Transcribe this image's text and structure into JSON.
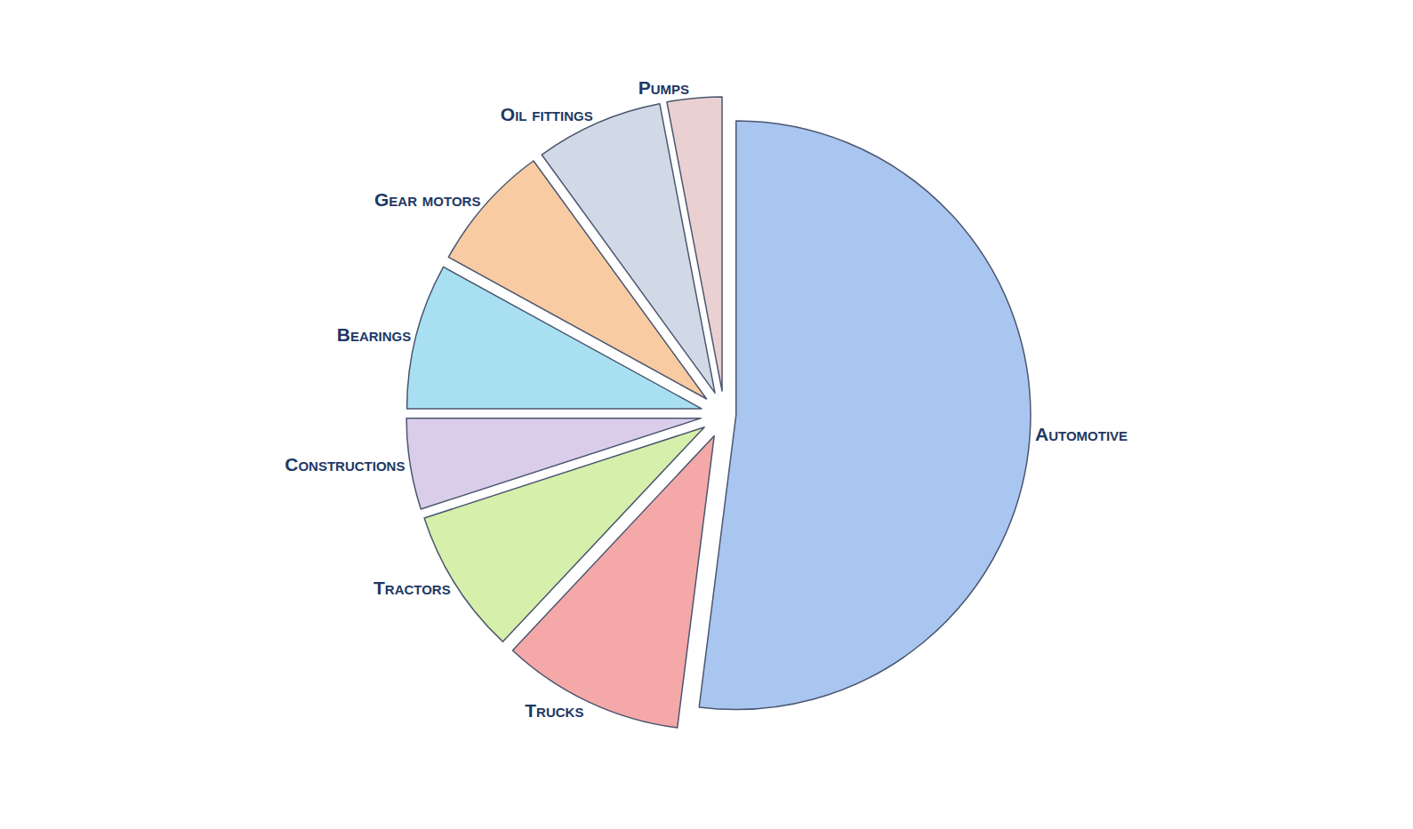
{
  "chart_data": {
    "type": "pie",
    "categories": [
      "Automotive",
      "Trucks",
      "Tractors",
      "Constructions",
      "Bearings",
      "Gear motors",
      "Oil fittings",
      "Pumps"
    ],
    "values": [
      52,
      10,
      8,
      5,
      8,
      7,
      7,
      3
    ],
    "colors": [
      "#a9c6f0",
      "#f4a8a8",
      "#d6efaa",
      "#d9cdea",
      "#a8e0f2",
      "#f8cba2",
      "#d2d9e6",
      "#ead0d0"
    ]
  }
}
